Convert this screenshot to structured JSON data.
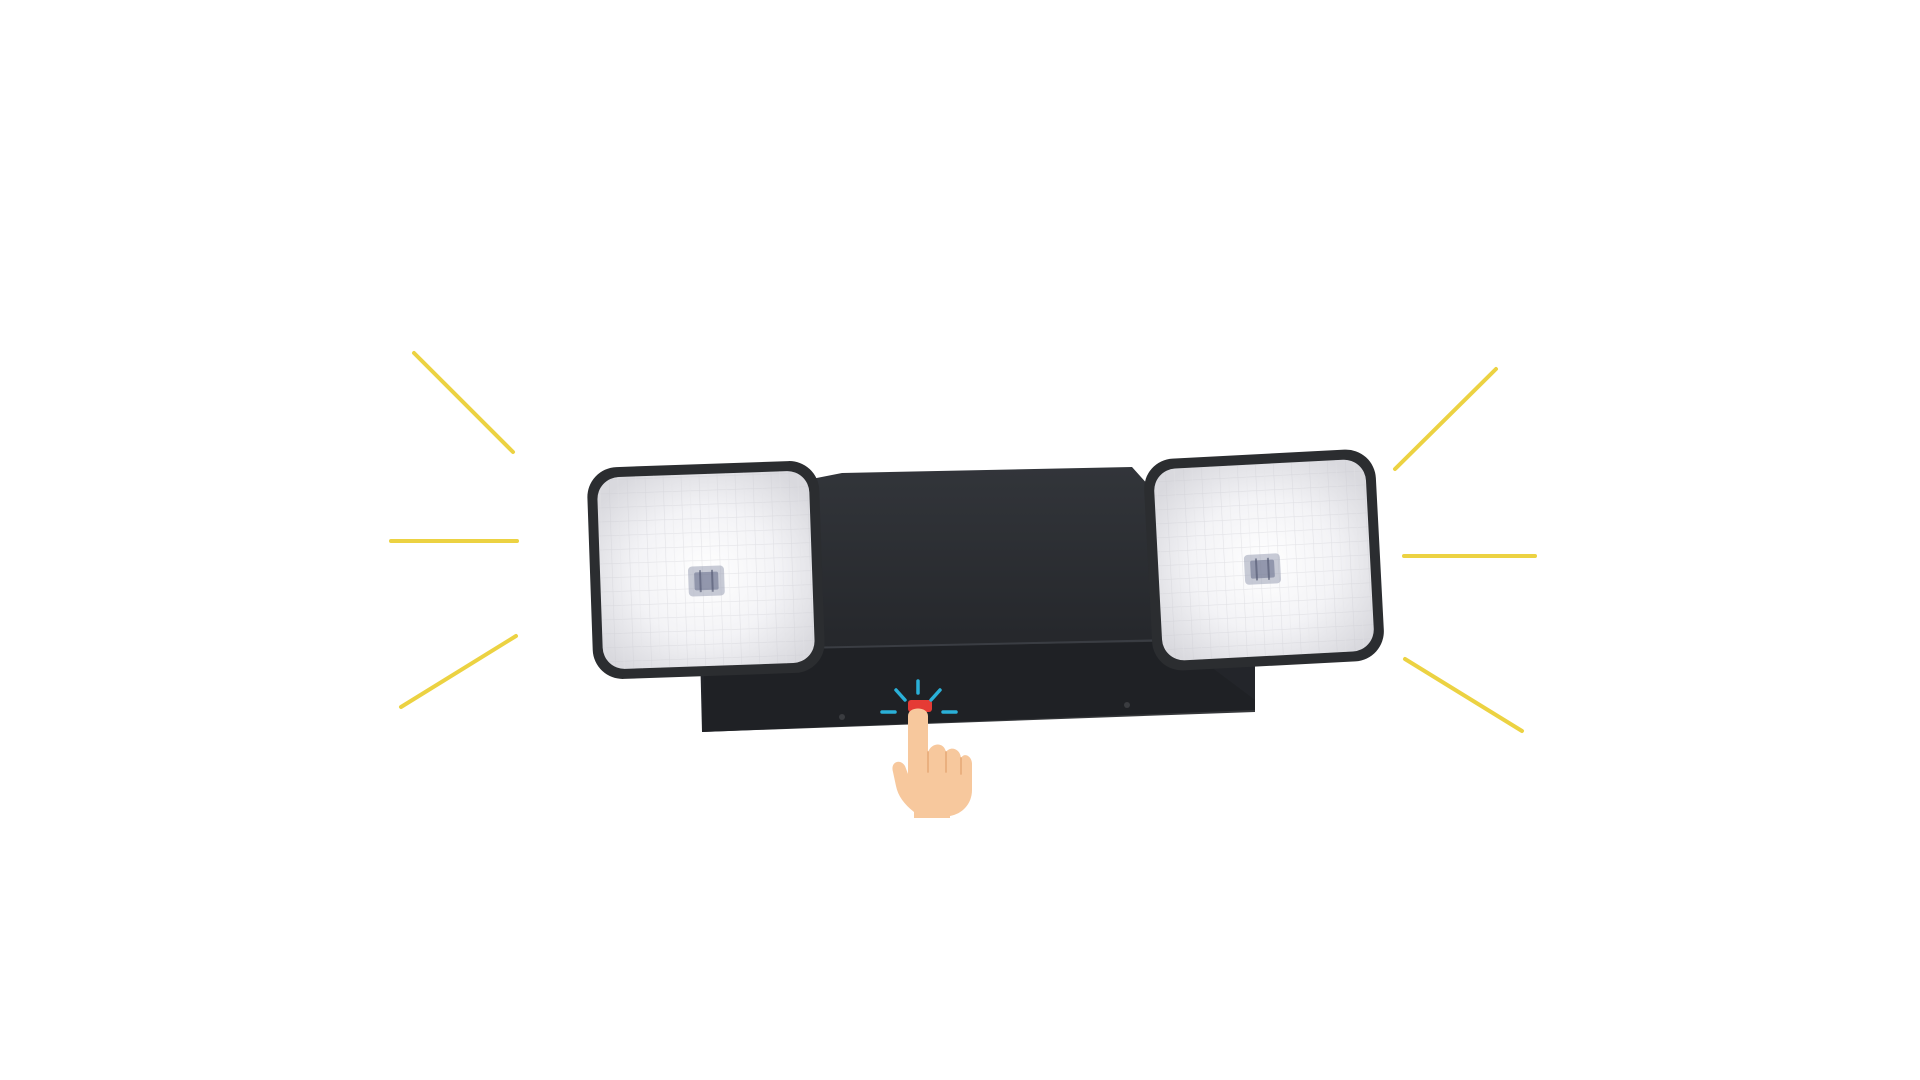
{
  "colors": {
    "background": "#ffffff",
    "light_rays": "#ecd242",
    "fixture_body": "#2a2d31",
    "fixture_shadow": "#1a1c1f",
    "lamp_frame": "#2b2d30",
    "lamp_glow": "#f8f8fa",
    "test_button": "#e53b35",
    "click_rays": "#2ab0d8",
    "hand_skin": "#f7c89d"
  },
  "icons": {
    "fixture": "emergency-light-icon",
    "button": "test-button-icon",
    "hand": "pointing-hand-icon"
  }
}
